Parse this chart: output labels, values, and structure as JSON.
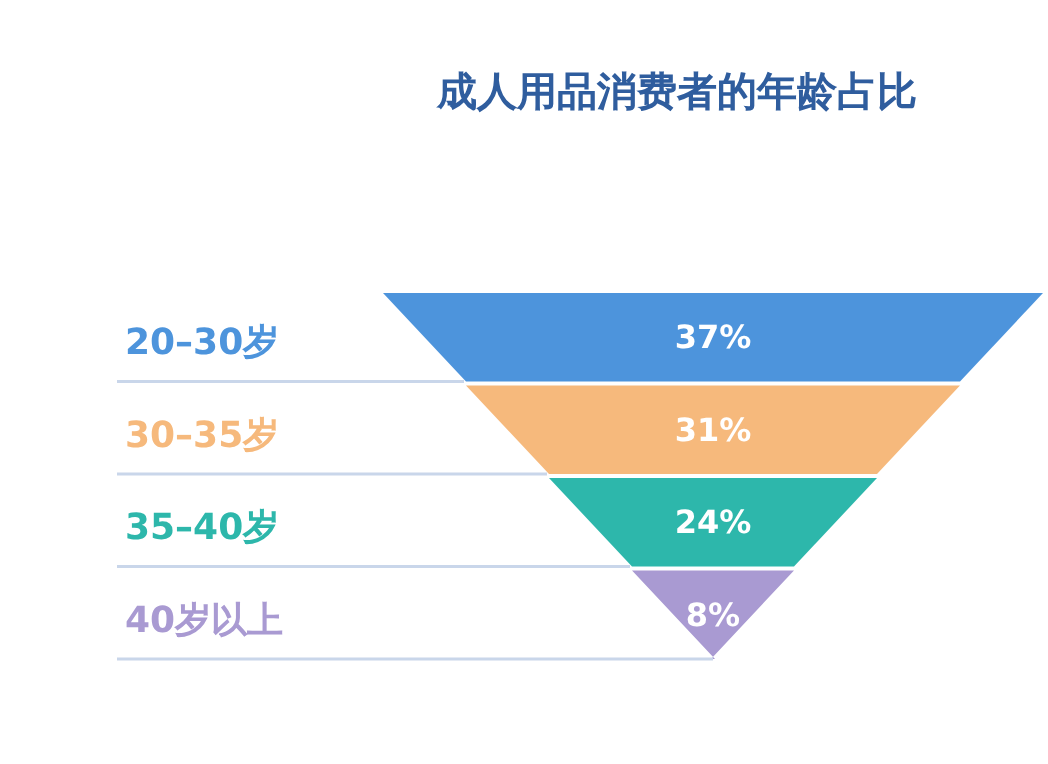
{
  "chart_data": {
    "type": "other",
    "title": "成人用品消费者的年龄占比",
    "categories": [
      "20–30岁",
      "30–35岁",
      "35–40岁",
      "40岁以上"
    ],
    "values": [
      37,
      31,
      24,
      8
    ],
    "value_labels": [
      "37%",
      "31%",
      "24%",
      "8%"
    ],
    "colors": [
      "#4d94dc",
      "#f6b97c",
      "#2db7ab",
      "#a99ad2"
    ]
  }
}
